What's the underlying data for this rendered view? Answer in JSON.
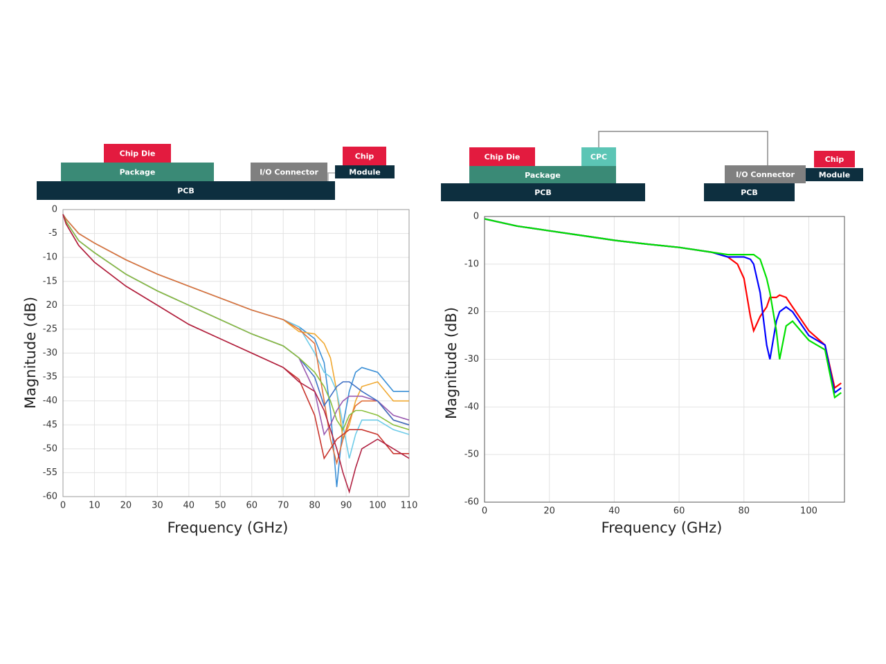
{
  "diagrams": [
    {
      "blocks": [
        "Chip Die",
        "Package",
        "PCB",
        "I/O Connector",
        "Chip",
        "Module"
      ]
    },
    {
      "blocks": [
        "Chip Die",
        "CPC",
        "Package",
        "PCB",
        "I/O Connector",
        "PCB",
        "Chip",
        "Module"
      ]
    }
  ],
  "chart_data": [
    {
      "type": "line",
      "ylabel": "Magnitude (dB)",
      "xlabel": "Frequency (GHz)",
      "grid": true,
      "xlim": [
        0,
        110
      ],
      "xticks": [
        0,
        10,
        20,
        30,
        40,
        50,
        60,
        70,
        80,
        90,
        100,
        110
      ],
      "ylim": [
        -60,
        0
      ],
      "yticks": [
        0,
        -5,
        -10,
        -15,
        {
          "value": -20,
          "label": "20"
        },
        -25,
        -30,
        -35,
        -40,
        -45,
        -50,
        -55,
        -60
      ],
      "x": [
        0,
        1,
        5,
        10,
        20,
        30,
        40,
        50,
        60,
        70,
        75,
        80,
        83,
        85,
        87,
        89,
        91,
        93,
        95,
        100,
        105,
        110
      ],
      "series": [
        {
          "color": "#3a8fd6",
          "values": [
            -1,
            -2,
            -5,
            -7,
            -10.5,
            -13.5,
            -16,
            -18.5,
            -21,
            -23,
            -24.5,
            -27,
            -32,
            -42,
            -58,
            -45,
            -38,
            -34,
            -33,
            -34,
            -38,
            -38
          ]
        },
        {
          "color": "#f0a830",
          "values": [
            -1,
            -2,
            -5,
            -7,
            -10.5,
            -13.5,
            -16,
            -18.5,
            -21,
            -23,
            -25.5,
            -26,
            -28,
            -31,
            -38,
            -48,
            -45,
            -40,
            -37,
            -36,
            -40,
            -40
          ]
        },
        {
          "color": "#6ccbe8",
          "values": [
            -1,
            -2,
            -5,
            -7,
            -10.5,
            -13.5,
            -16,
            -18.5,
            -21,
            -23,
            -24.5,
            -30,
            -34,
            -35,
            -38,
            -45,
            -52,
            -47,
            -44,
            -44,
            -46,
            -47
          ]
        },
        {
          "color": "#e0703a",
          "values": [
            -1,
            -2,
            -5,
            -7,
            -10.5,
            -13.5,
            -16,
            -18.5,
            -21,
            -23,
            -25,
            -28,
            -40,
            -48,
            -53,
            -48,
            -44,
            -41,
            -40,
            -40,
            -44,
            -45
          ]
        },
        {
          "color": "#9a5ab0",
          "values": [
            -1,
            -2.5,
            -6.5,
            -9,
            -13.5,
            -17,
            -20,
            -23,
            -26,
            -28.5,
            -31,
            -38,
            -47,
            -45,
            -42,
            -40,
            -39,
            -39,
            -39,
            -40,
            -43,
            -44
          ]
        },
        {
          "color": "#3d6fc4",
          "values": [
            -1,
            -2.5,
            -6.5,
            -9,
            -13.5,
            -17,
            -20,
            -23,
            -26,
            -28.5,
            -31,
            -35,
            -41,
            -39,
            -37,
            -36,
            -36,
            -37,
            -38,
            -40,
            -44,
            -45
          ]
        },
        {
          "color": "#8bbf3c",
          "values": [
            -1,
            -2.5,
            -6.5,
            -9,
            -13.5,
            -17,
            -20,
            -23,
            -26,
            -28.5,
            -31,
            -34,
            -37,
            -40,
            -44,
            -46,
            -43,
            -42,
            -42,
            -43,
            -45,
            -46
          ]
        },
        {
          "color": "#c8342c",
          "values": [
            -1,
            -3,
            -7.5,
            -11,
            -16,
            -20,
            -24,
            -27,
            -30,
            -33,
            -35.5,
            -43,
            -52,
            -50,
            -48,
            -47,
            -46,
            -46,
            -46,
            -47,
            -51,
            -51
          ]
        },
        {
          "color": "#b02040",
          "values": [
            -1,
            -3,
            -7.5,
            -11,
            -16,
            -20,
            -24,
            -27,
            -30,
            -33,
            -36,
            -38,
            -42,
            -46,
            -50,
            -55,
            -59,
            -54,
            -50,
            -48,
            -50,
            -52
          ]
        }
      ]
    },
    {
      "type": "line",
      "ylabel": "Magnitude (dB)",
      "xlabel": "Frequency (GHz)",
      "grid": true,
      "xlim": [
        0,
        111
      ],
      "xticks": [
        0,
        20,
        40,
        60,
        80,
        100
      ],
      "ylim": [
        -60,
        0
      ],
      "yticks": [
        0,
        -10,
        {
          "value": -20,
          "label": "20"
        },
        -30,
        -40,
        -50,
        -60
      ],
      "x": [
        0,
        10,
        20,
        30,
        40,
        50,
        60,
        70,
        75,
        78,
        80,
        82,
        83,
        85,
        87,
        88,
        90,
        91,
        93,
        95,
        100,
        105,
        108,
        110
      ],
      "series": [
        {
          "color": "#ff0000",
          "values": [
            -0.5,
            -2,
            -3,
            -4,
            -5,
            -5.8,
            -6.5,
            -7.5,
            -8.5,
            -10,
            -13,
            -21,
            -24,
            -21,
            -19,
            -17,
            -17,
            -16.5,
            -17,
            -19,
            -24,
            -27,
            -36,
            -35
          ]
        },
        {
          "color": "#0000ff",
          "values": [
            -0.5,
            -2,
            -3,
            -4,
            -5,
            -5.8,
            -6.5,
            -7.5,
            -8.5,
            -8.5,
            -8.5,
            -9,
            -10,
            -16,
            -27,
            -30,
            -22,
            -20,
            -19,
            -20,
            -25,
            -27,
            -37,
            -36
          ]
        },
        {
          "color": "#00e000",
          "values": [
            -0.5,
            -2,
            -3,
            -4,
            -5,
            -5.8,
            -6.5,
            -7.5,
            -8,
            -8,
            -8,
            -8,
            -8,
            -9,
            -13,
            -16,
            -24,
            -30,
            -23,
            -22,
            -26,
            -28,
            -38,
            -37
          ]
        }
      ]
    }
  ]
}
